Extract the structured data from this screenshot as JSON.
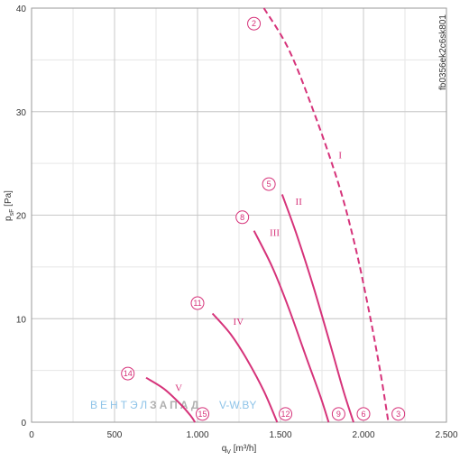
{
  "chart_data": {
    "type": "line",
    "title": "",
    "code": "fb0356ek2c6sk801",
    "xlabel": "qV [m³/h]",
    "xlabel_main": "q",
    "xlabel_sub": "V",
    "xlabel_unit": " [m³/h]",
    "ylabel": "psF [Pa]",
    "ylabel_main": "p",
    "ylabel_sub": "sF",
    "ylabel_unit": " [Pa]",
    "xlim": [
      0,
      2500
    ],
    "ylim": [
      0,
      40
    ],
    "x_ticks": [
      0,
      500,
      1000,
      1500,
      2000,
      2500
    ],
    "x_tick_labels": [
      "0",
      "500",
      "1.000",
      "1.500",
      "2.000",
      "2.500"
    ],
    "y_ticks": [
      0,
      10,
      20,
      30,
      40
    ],
    "y_tick_labels": [
      "0",
      "10",
      "20",
      "30",
      "40"
    ],
    "x_minor_step": 250,
    "y_minor_step": 5,
    "grid": true,
    "color": "#d6337a",
    "series": [
      {
        "name": "I",
        "dashed": true,
        "points": [
          [
            1400,
            40
          ],
          [
            1550,
            36
          ],
          [
            1700,
            30
          ],
          [
            1850,
            23
          ],
          [
            1950,
            17
          ],
          [
            2030,
            11
          ],
          [
            2100,
            5
          ],
          [
            2150,
            0
          ]
        ],
        "label_at": [
          1850,
          25.5
        ]
      },
      {
        "name": "II",
        "dashed": false,
        "points": [
          [
            1510,
            22
          ],
          [
            1600,
            18
          ],
          [
            1700,
            13
          ],
          [
            1800,
            7.5
          ],
          [
            1880,
            3
          ],
          [
            1940,
            0
          ]
        ],
        "label_at": [
          1590,
          21
        ]
      },
      {
        "name": "III",
        "dashed": false,
        "points": [
          [
            1340,
            18.5
          ],
          [
            1450,
            15
          ],
          [
            1550,
            11
          ],
          [
            1650,
            6.5
          ],
          [
            1740,
            2.5
          ],
          [
            1790,
            0
          ]
        ],
        "label_at": [
          1435,
          18
        ]
      },
      {
        "name": "IV",
        "dashed": false,
        "points": [
          [
            1090,
            10.5
          ],
          [
            1200,
            8.5
          ],
          [
            1300,
            6
          ],
          [
            1400,
            3
          ],
          [
            1480,
            0
          ]
        ],
        "label_at": [
          1215,
          9.4
        ]
      },
      {
        "name": "V",
        "dashed": false,
        "points": [
          [
            690,
            4.3
          ],
          [
            800,
            3.2
          ],
          [
            900,
            1.7
          ],
          [
            960,
            0.6
          ],
          [
            985,
            0
          ]
        ],
        "label_at": [
          865,
          3
        ]
      }
    ],
    "markers": [
      {
        "label": "2",
        "x": 1340,
        "y": 38.5
      },
      {
        "label": "5",
        "x": 1430,
        "y": 23
      },
      {
        "label": "8",
        "x": 1270,
        "y": 19.8
      },
      {
        "label": "11",
        "x": 1000,
        "y": 11.5
      },
      {
        "label": "14",
        "x": 580,
        "y": 4.7
      },
      {
        "label": "15",
        "x": 1030,
        "y": 0.8
      },
      {
        "label": "12",
        "x": 1530,
        "y": 0.8
      },
      {
        "label": "9",
        "x": 1850,
        "y": 0.8
      },
      {
        "label": "6",
        "x": 2000,
        "y": 0.8
      },
      {
        "label": "3",
        "x": 2210,
        "y": 0.8
      }
    ]
  },
  "watermark": {
    "brand_part1": "ВЕНТЭЛ",
    "brand_part2": "ЗАПАД",
    "site": "V-W.BY",
    "color1": "#8ec3e8",
    "color2": "#b0b0b0"
  }
}
